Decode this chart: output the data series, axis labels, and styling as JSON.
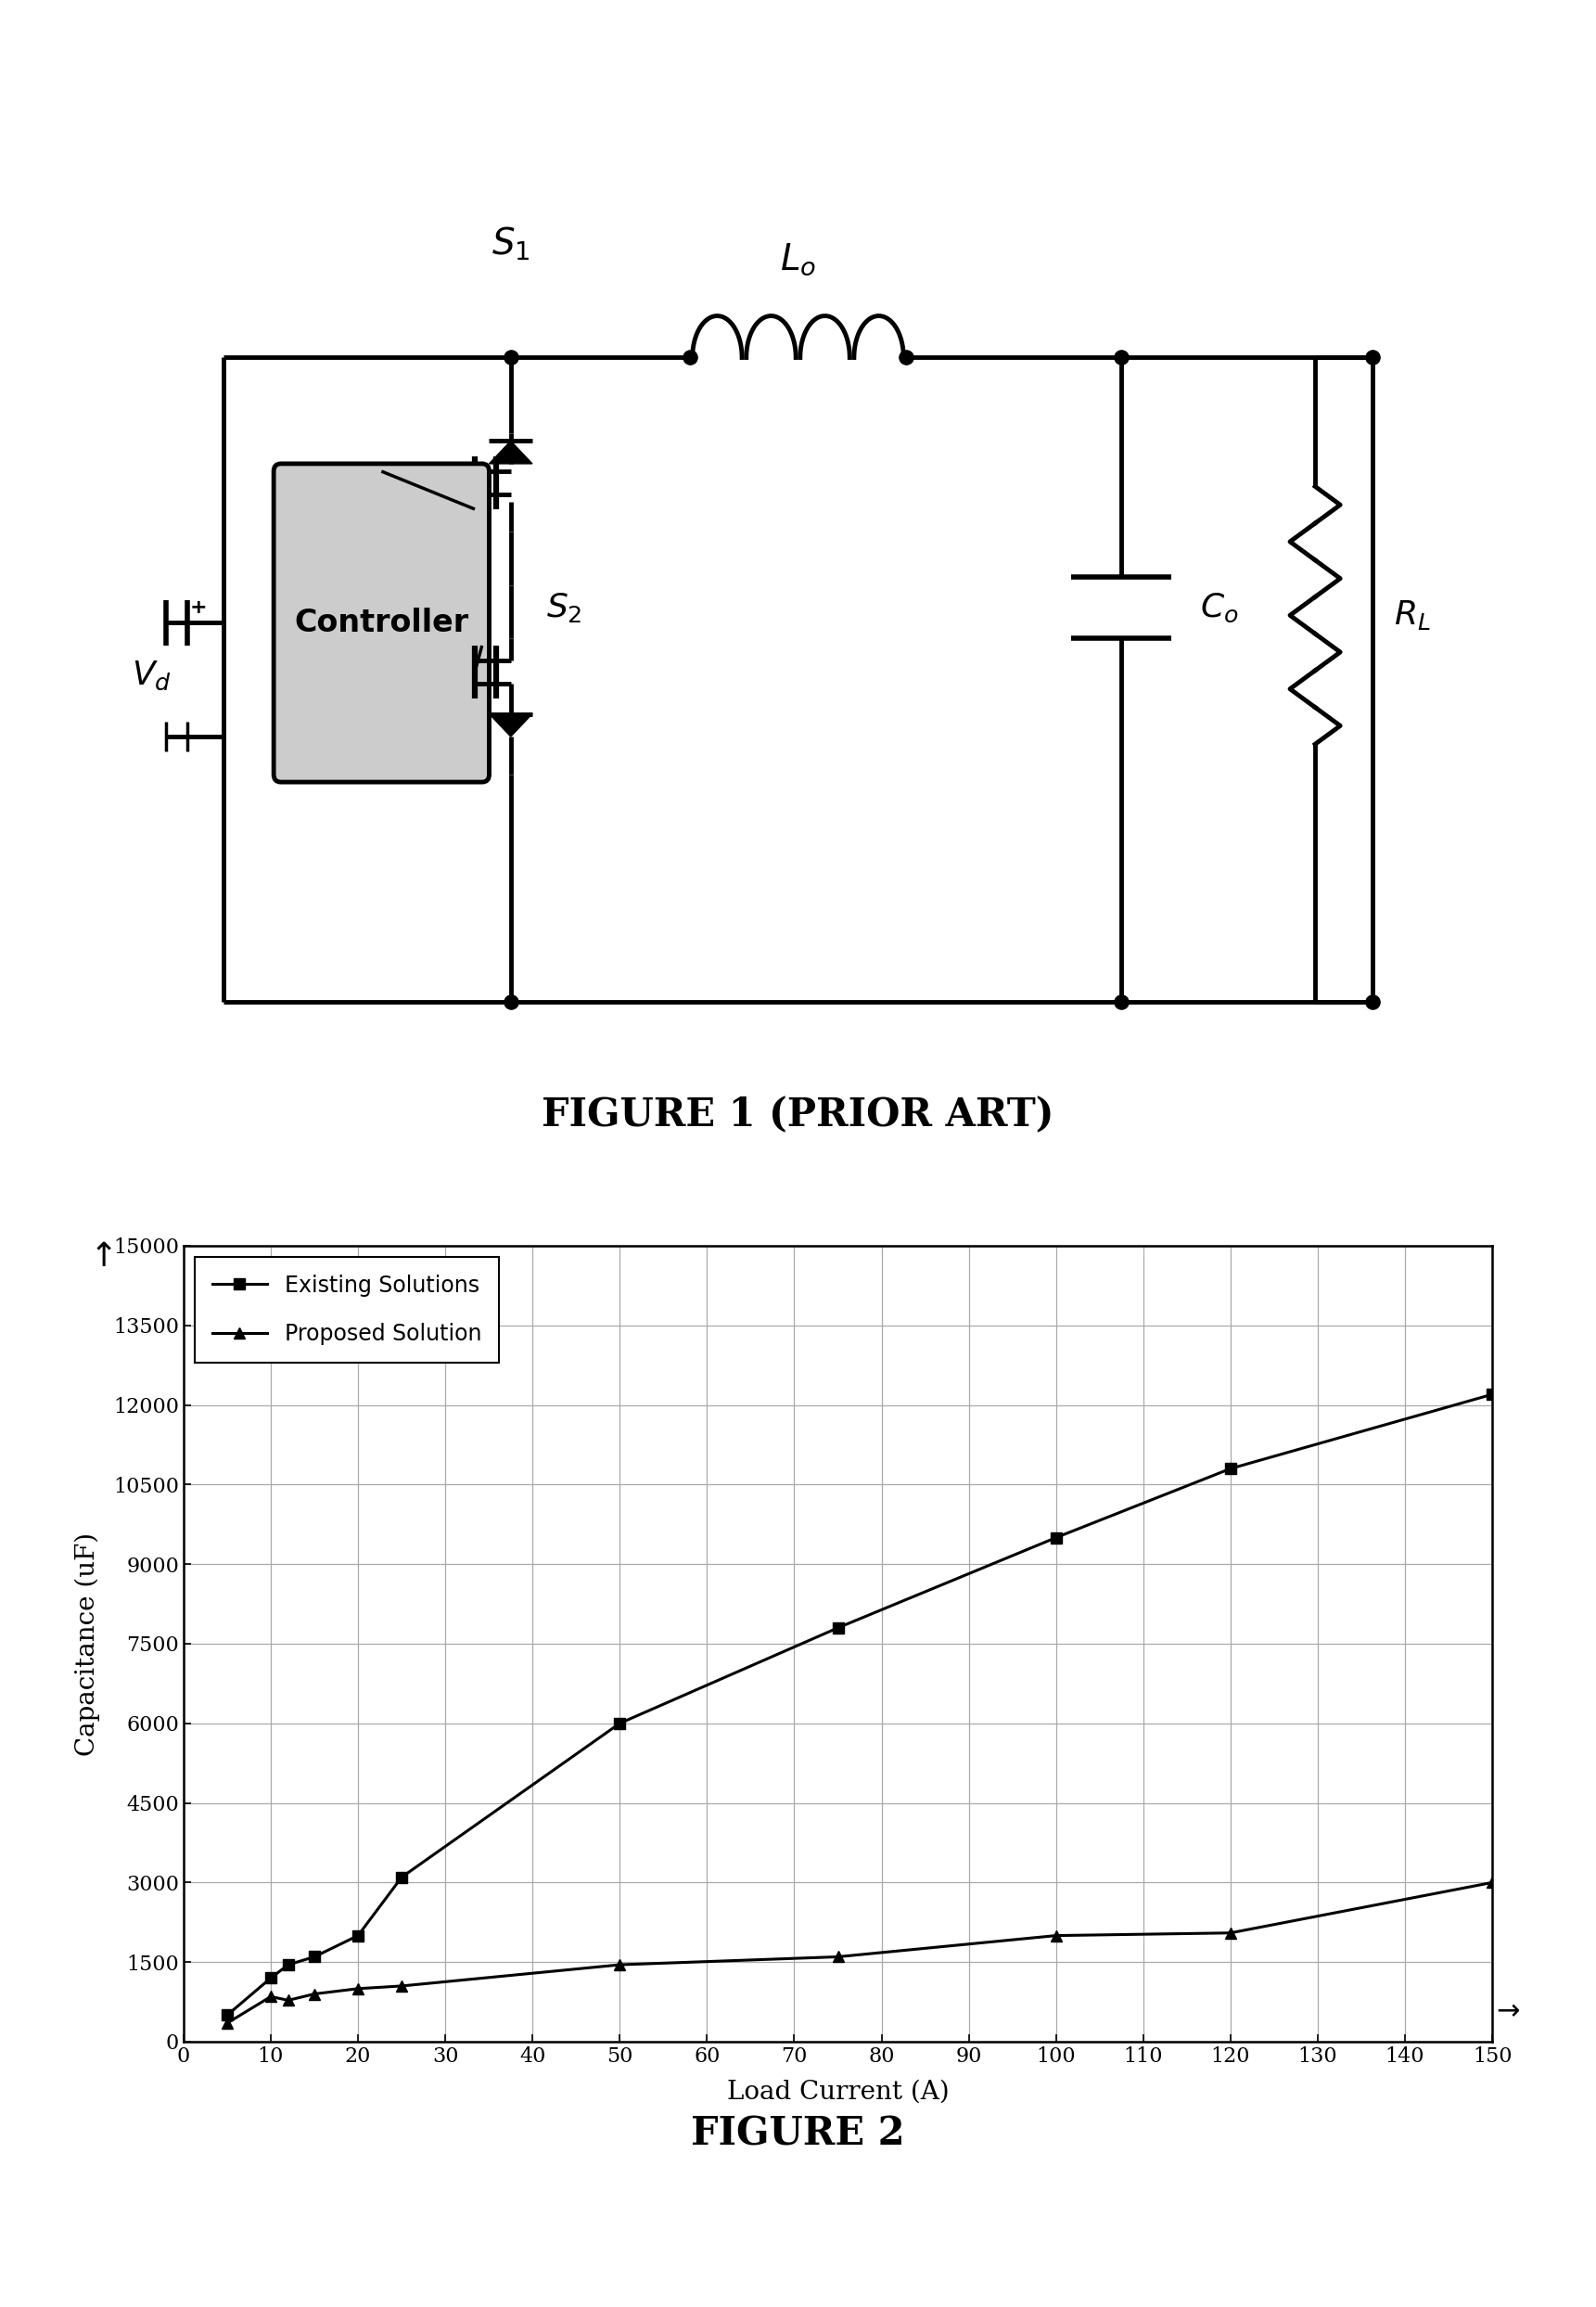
{
  "existing_x": [
    5,
    10,
    12,
    15,
    20,
    25,
    50,
    75,
    100,
    120,
    150
  ],
  "existing_y": [
    500,
    1200,
    1450,
    1600,
    2000,
    3100,
    6000,
    7800,
    9500,
    10800,
    12200
  ],
  "proposed_x": [
    5,
    10,
    12,
    15,
    20,
    25,
    50,
    75,
    100,
    120,
    150
  ],
  "proposed_y": [
    350,
    850,
    780,
    900,
    1000,
    1050,
    1450,
    1600,
    2000,
    2050,
    3000
  ],
  "xlabel": "Load Current (A)",
  "ylabel": "Capacitance (uF)",
  "yticks": [
    0,
    1500,
    3000,
    4500,
    6000,
    7500,
    9000,
    10500,
    12000,
    13500,
    15000
  ],
  "xticks": [
    0,
    10,
    20,
    30,
    40,
    50,
    60,
    70,
    80,
    90,
    100,
    110,
    120,
    130,
    140,
    150
  ],
  "legend_existing": "Existing Solutions",
  "legend_proposed": "Proposed Solution",
  "figure1_caption": "FIGURE 1 (PRIOR ART)",
  "figure2_caption": "FIGURE 2",
  "background_color": "#ffffff",
  "line_color": "#000000",
  "circuit_xlim": [
    0,
    20
  ],
  "circuit_ylim": [
    0,
    14
  ],
  "lw_main": 2.8,
  "lw_heavy": 3.5,
  "grid_color": "#aaaaaa",
  "ctrl_box_color": "#cccccc"
}
